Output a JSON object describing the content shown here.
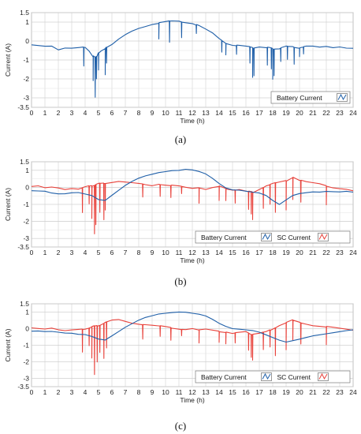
{
  "figure": {
    "captions": [
      "(a)",
      "(b)",
      "(c)"
    ]
  },
  "chart_data": [
    {
      "type": "line",
      "panel": "(a)",
      "xlabel": "Time (h)",
      "ylabel": "Current (A)",
      "xlim": [
        0,
        24
      ],
      "ylim": [
        -3.5,
        1.5
      ],
      "xticks": [
        "0",
        "1",
        "2",
        "3",
        "4",
        "5",
        "6",
        "7",
        "8",
        "9",
        "10",
        "11",
        "12",
        "13",
        "14",
        "15",
        "16",
        "17",
        "18",
        "19",
        "20",
        "21",
        "22",
        "23",
        "24"
      ],
      "yticks": [
        "1.5",
        "1",
        "0",
        "-1",
        "-2",
        "-3",
        "-3.5"
      ],
      "grid": true,
      "legend_position": "bottom-right",
      "colors": {
        "Battery Current": "#1f5fa8"
      },
      "series": [
        {
          "name": "Battery Current",
          "color": "#1f5fa8",
          "x": [
            0,
            0.5,
            1,
            1.5,
            2,
            2.5,
            3,
            3.5,
            4,
            4.3,
            4.6,
            4.8,
            5,
            5.2,
            5.5,
            6,
            6.5,
            7,
            7.5,
            8,
            8.5,
            9,
            9.5,
            10,
            10.5,
            11,
            11.5,
            12,
            12.5,
            13,
            13.5,
            14,
            14.5,
            15,
            15.5,
            16,
            16.5,
            17,
            17.5,
            18,
            18.5,
            19,
            19.5,
            20,
            20.5,
            21,
            21.5,
            22,
            22.5,
            23,
            23.5,
            24
          ],
          "y": [
            -0.2,
            -0.25,
            -0.3,
            -0.3,
            -0.5,
            -0.4,
            -0.4,
            -0.35,
            -0.3,
            -0.5,
            -0.8,
            -0.9,
            -0.6,
            -0.5,
            -0.4,
            -0.2,
            0.1,
            0.35,
            0.55,
            0.7,
            0.8,
            0.9,
            0.95,
            1.0,
            1.05,
            1.05,
            1.0,
            0.95,
            0.8,
            0.6,
            0.4,
            0.1,
            -0.1,
            -0.2,
            -0.25,
            -0.3,
            -0.35,
            -0.3,
            -0.35,
            -0.4,
            -0.4,
            -0.3,
            -0.3,
            -0.35,
            -0.3,
            -0.3,
            -0.35,
            -0.3,
            -0.35,
            -0.3,
            -0.35,
            -0.35
          ]
        }
      ],
      "spikes": [
        {
          "series": "Battery Current",
          "x": [
            3.9,
            4.6,
            4.75,
            4.85,
            5.0,
            5.5,
            5.6,
            9.5,
            10.3,
            11.2,
            12.3,
            14.2,
            14.5,
            15.3,
            16.3,
            16.5,
            16.6,
            17.6,
            17.9,
            18.0,
            18.1,
            18.6,
            19.1,
            19.6,
            20.0,
            20.3
          ],
          "y": [
            -1.3,
            -2.1,
            -3.0,
            -2.0,
            -1.5,
            -1.8,
            -1.2,
            0.1,
            -0.1,
            0.2,
            0.4,
            -0.6,
            -0.7,
            -0.7,
            -1.2,
            -1.9,
            -1.8,
            -1.3,
            -1.5,
            -2.0,
            -1.8,
            -1.1,
            -1.0,
            -1.2,
            -0.8,
            -0.7
          ]
        }
      ]
    },
    {
      "type": "line",
      "panel": "(b)",
      "xlabel": "Time (h)",
      "ylabel": "Current (A)",
      "xlim": [
        0,
        24
      ],
      "ylim": [
        -3.5,
        1.5
      ],
      "xticks": [
        "0",
        "1",
        "2",
        "3",
        "4",
        "5",
        "6",
        "7",
        "8",
        "9",
        "10",
        "11",
        "12",
        "13",
        "14",
        "15",
        "16",
        "17",
        "18",
        "19",
        "20",
        "21",
        "22",
        "23",
        "24"
      ],
      "yticks": [
        "1.5",
        "1",
        "0",
        "-1",
        "-2",
        "-3",
        "-3.5"
      ],
      "grid": true,
      "legend_position": "bottom-right",
      "colors": {
        "Battery Current": "#1f5fa8",
        "SC Current": "#e8413a"
      },
      "series": [
        {
          "name": "Battery Current",
          "color": "#1f5fa8",
          "x": [
            0,
            0.5,
            1,
            1.5,
            2,
            2.5,
            3,
            3.5,
            4,
            4.5,
            5,
            5.5,
            6,
            6.5,
            7,
            7.5,
            8,
            8.5,
            9,
            9.5,
            10,
            10.5,
            11,
            11.5,
            12,
            12.5,
            13,
            13.5,
            14,
            14.5,
            15,
            15.5,
            16,
            16.5,
            17,
            17.5,
            18,
            18.5,
            19,
            19.5,
            20,
            20.5,
            21,
            21.5,
            22,
            22.5,
            23,
            23.5,
            24
          ],
          "y": [
            -0.2,
            -0.2,
            -0.2,
            -0.3,
            -0.35,
            -0.35,
            -0.3,
            -0.3,
            -0.4,
            -0.5,
            -0.75,
            -0.8,
            -0.5,
            -0.2,
            0.1,
            0.35,
            0.55,
            0.7,
            0.8,
            0.9,
            0.95,
            1.0,
            1.0,
            1.05,
            1.0,
            0.9,
            0.75,
            0.5,
            0.2,
            -0.05,
            -0.15,
            -0.15,
            -0.2,
            -0.25,
            -0.3,
            -0.45,
            -0.75,
            -1.0,
            -0.75,
            -0.5,
            -0.4,
            -0.35,
            -0.3,
            -0.3,
            -0.25,
            -0.25,
            -0.25,
            -0.2,
            -0.25
          ]
        },
        {
          "name": "SC Current",
          "color": "#e8413a",
          "x": [
            0,
            0.5,
            1,
            1.5,
            2,
            2.5,
            3,
            3.5,
            4,
            4.5,
            5,
            5.5,
            6,
            6.5,
            7,
            7.5,
            8,
            8.5,
            9,
            9.5,
            10,
            10.5,
            11,
            11.5,
            12,
            12.5,
            13,
            13.5,
            14,
            14.5,
            15,
            15.5,
            16,
            16.5,
            17,
            17.5,
            18,
            18.5,
            19,
            19.5,
            20,
            20.5,
            21,
            21.5,
            22,
            22.5,
            23,
            23.5,
            24
          ],
          "y": [
            0.05,
            0.1,
            0.0,
            0.05,
            0.0,
            -0.1,
            -0.05,
            -0.1,
            0.0,
            0.1,
            0.2,
            0.25,
            0.3,
            0.35,
            0.3,
            0.25,
            0.2,
            0.15,
            0.1,
            0.2,
            0.15,
            0.1,
            0.05,
            0.0,
            -0.05,
            0.0,
            -0.1,
            0.0,
            0.05,
            -0.1,
            -0.15,
            -0.1,
            -0.2,
            -0.3,
            -0.1,
            0.1,
            0.2,
            0.3,
            0.4,
            0.6,
            0.4,
            0.3,
            0.25,
            0.2,
            0.1,
            0.0,
            -0.05,
            -0.1,
            -0.2
          ]
        }
      ],
      "spikes": [
        {
          "series": "SC Current",
          "x": [
            3.8,
            4.3,
            4.5,
            4.7,
            4.8,
            5.1,
            5.4,
            5.5,
            8.3,
            9.6,
            10.4,
            11.2,
            12.5,
            14.0,
            14.5,
            15.2,
            16.2,
            16.4,
            16.5,
            17.3,
            17.8,
            18.2,
            19.0,
            19.5,
            20.1,
            22.0
          ],
          "y": [
            -1.5,
            -1.0,
            -1.8,
            -2.7,
            -2.2,
            -1.5,
            -1.9,
            -1.3,
            -0.6,
            -0.5,
            -0.6,
            -0.4,
            -0.9,
            -0.8,
            -0.8,
            -0.9,
            -1.3,
            -1.6,
            -1.9,
            -1.2,
            -1.0,
            -1.5,
            -1.3,
            -0.7,
            -0.9,
            -1.0
          ]
        }
      ]
    },
    {
      "type": "line",
      "panel": "(c)",
      "xlabel": "Time (h)",
      "ylabel": "Current (A)",
      "xlim": [
        0,
        24
      ],
      "ylim": [
        -3.5,
        1.5
      ],
      "xticks": [
        "0",
        "1",
        "2",
        "3",
        "4",
        "5",
        "6",
        "7",
        "8",
        "9",
        "10",
        "11",
        "12",
        "13",
        "14",
        "15",
        "16",
        "17",
        "18",
        "19",
        "20",
        "21",
        "22",
        "23",
        "24"
      ],
      "yticks": [
        "1.5",
        "1",
        "0",
        "-1",
        "-2",
        "-3",
        "-3.5"
      ],
      "grid": true,
      "legend_position": "bottom-right",
      "colors": {
        "Battery Current": "#1f5fa8",
        "SC Current": "#e8413a"
      },
      "series": [
        {
          "name": "Battery Current",
          "color": "#1f5fa8",
          "x": [
            0,
            0.5,
            1,
            1.5,
            2,
            2.5,
            3,
            3.5,
            4,
            4.5,
            5,
            5.5,
            6,
            6.5,
            7,
            7.5,
            8,
            8.5,
            9,
            9.5,
            10,
            10.5,
            11,
            11.5,
            12,
            12.5,
            13,
            13.5,
            14,
            14.5,
            15,
            15.5,
            16,
            16.5,
            17,
            17.5,
            18,
            18.5,
            19,
            19.5,
            20,
            20.5,
            21,
            21.5,
            22,
            22.5,
            23,
            23.5,
            24
          ],
          "y": [
            -0.15,
            -0.15,
            -0.2,
            -0.2,
            -0.25,
            -0.3,
            -0.3,
            -0.35,
            -0.35,
            -0.45,
            -0.6,
            -0.65,
            -0.4,
            -0.15,
            0.1,
            0.3,
            0.5,
            0.65,
            0.75,
            0.85,
            0.9,
            0.95,
            1.0,
            1.0,
            0.95,
            0.9,
            0.8,
            0.6,
            0.35,
            0.15,
            0.0,
            -0.05,
            -0.1,
            -0.15,
            -0.25,
            -0.4,
            -0.55,
            -0.7,
            -0.8,
            -0.7,
            -0.6,
            -0.5,
            -0.4,
            -0.35,
            -0.3,
            -0.25,
            -0.2,
            -0.15,
            -0.1
          ]
        },
        {
          "name": "SC Current",
          "color": "#e8413a",
          "x": [
            0,
            0.5,
            1,
            1.5,
            2,
            2.5,
            3,
            3.5,
            4,
            4.5,
            5,
            5.5,
            6,
            6.5,
            7,
            7.5,
            8,
            8.5,
            9,
            9.5,
            10,
            10.5,
            11,
            11.5,
            12,
            12.5,
            13,
            13.5,
            14,
            14.5,
            15,
            15.5,
            16,
            16.5,
            17,
            17.5,
            18,
            18.5,
            19,
            19.5,
            20,
            20.5,
            21,
            21.5,
            22,
            22.5,
            23,
            23.5,
            24
          ],
          "y": [
            0.05,
            0.0,
            -0.05,
            0.0,
            -0.1,
            -0.15,
            -0.1,
            -0.05,
            0.0,
            0.1,
            0.2,
            0.35,
            0.5,
            0.55,
            0.45,
            0.35,
            0.3,
            0.25,
            0.2,
            0.15,
            0.1,
            0.05,
            0.0,
            -0.05,
            0.0,
            -0.1,
            -0.05,
            -0.1,
            -0.15,
            -0.2,
            -0.3,
            -0.25,
            -0.2,
            -0.35,
            -0.3,
            -0.2,
            0.0,
            0.2,
            0.35,
            0.5,
            0.4,
            0.3,
            0.2,
            0.15,
            0.1,
            0.05,
            0.0,
            -0.05,
            -0.1
          ]
        }
      ],
      "spikes": [
        {
          "series": "SC Current",
          "x": [
            3.8,
            4.3,
            4.5,
            4.7,
            4.9,
            5.1,
            5.4,
            5.6,
            8.3,
            9.6,
            10.4,
            11.2,
            12.5,
            14.0,
            14.5,
            15.2,
            16.2,
            16.4,
            16.5,
            17.3,
            17.8,
            18.2,
            19.0,
            19.5,
            20.1,
            22.0
          ],
          "y": [
            -1.4,
            -1.0,
            -1.8,
            -2.8,
            -2.0,
            -1.4,
            -1.8,
            -1.2,
            -0.6,
            -0.5,
            -0.7,
            -0.4,
            -0.9,
            -0.8,
            -0.9,
            -0.9,
            -1.3,
            -1.7,
            -1.9,
            -1.3,
            -1.1,
            -1.6,
            -1.3,
            -0.7,
            -0.9,
            -1.0
          ]
        }
      ]
    }
  ]
}
